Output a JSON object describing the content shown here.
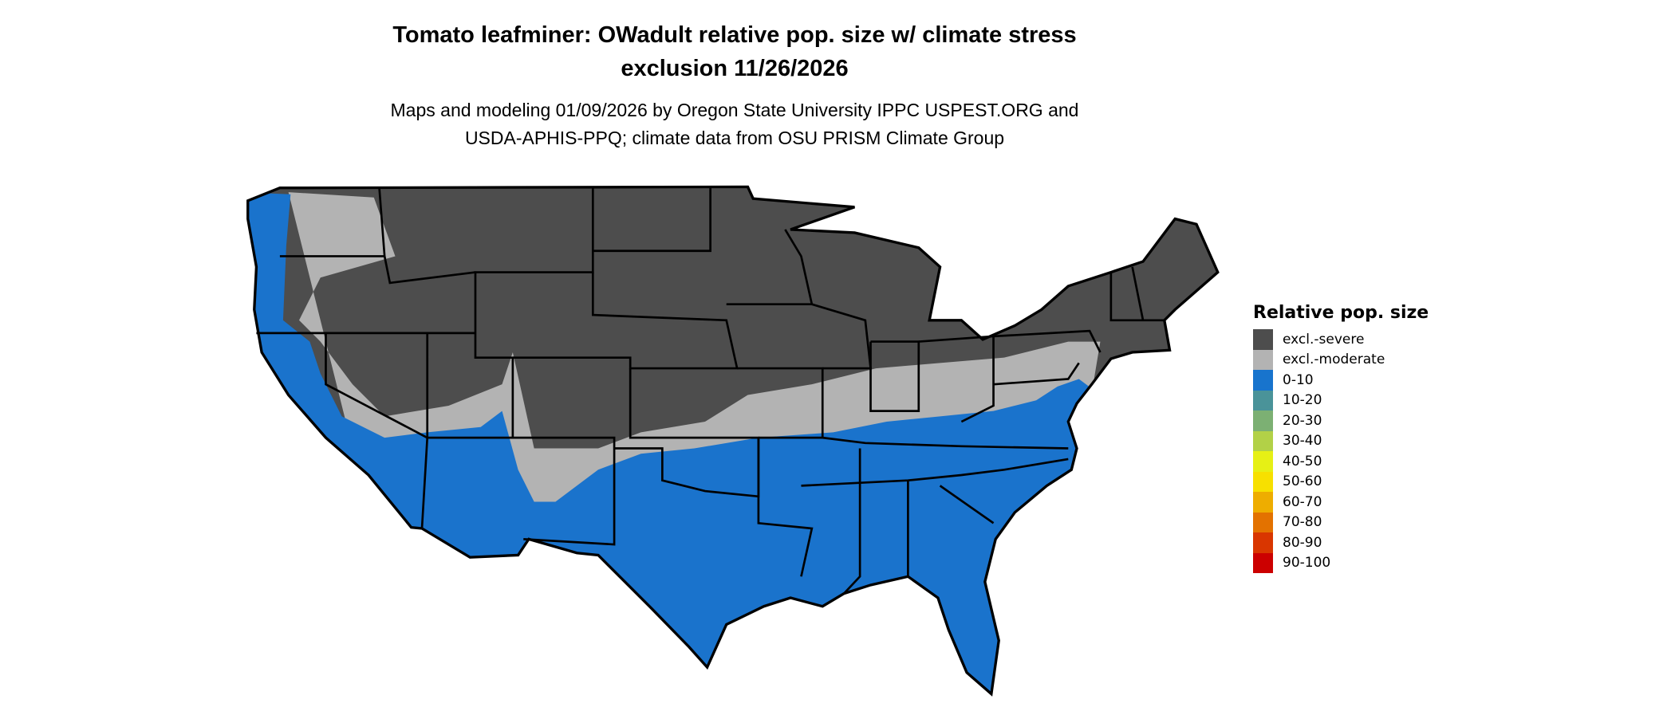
{
  "title_line1": "Tomato leafminer: OWadult relative pop. size w/ climate stress",
  "title_line2": "exclusion 11/26/2026",
  "subtitle_line1": "Maps and modeling 01/09/2026 by Oregon State University IPPC USPEST.ORG and",
  "subtitle_line2": "USDA-APHIS-PPQ; climate data from OSU PRISM Climate Group",
  "map_colors": {
    "excl_severe": "#4d4d4d",
    "excl_moderate": "#b3b3b3",
    "range_0_10": "#1a73cc",
    "state_border": "#000000"
  },
  "legend": {
    "title": "Relative pop. size",
    "items": [
      {
        "label": "excl.-severe",
        "color": "#4d4d4d"
      },
      {
        "label": "excl.-moderate",
        "color": "#b3b3b3"
      },
      {
        "label": "0-10",
        "color": "#1874cd"
      },
      {
        "label": "10-20",
        "color": "#4a9399"
      },
      {
        "label": "20-30",
        "color": "#7cb073"
      },
      {
        "label": "30-40",
        "color": "#b2d147"
      },
      {
        "label": "40-50",
        "color": "#e6f015"
      },
      {
        "label": "50-60",
        "color": "#f7e000"
      },
      {
        "label": "60-70",
        "color": "#eead00"
      },
      {
        "label": "70-80",
        "color": "#e37200"
      },
      {
        "label": "80-90",
        "color": "#d93600"
      },
      {
        "label": "90-100",
        "color": "#cc0000"
      }
    ]
  }
}
